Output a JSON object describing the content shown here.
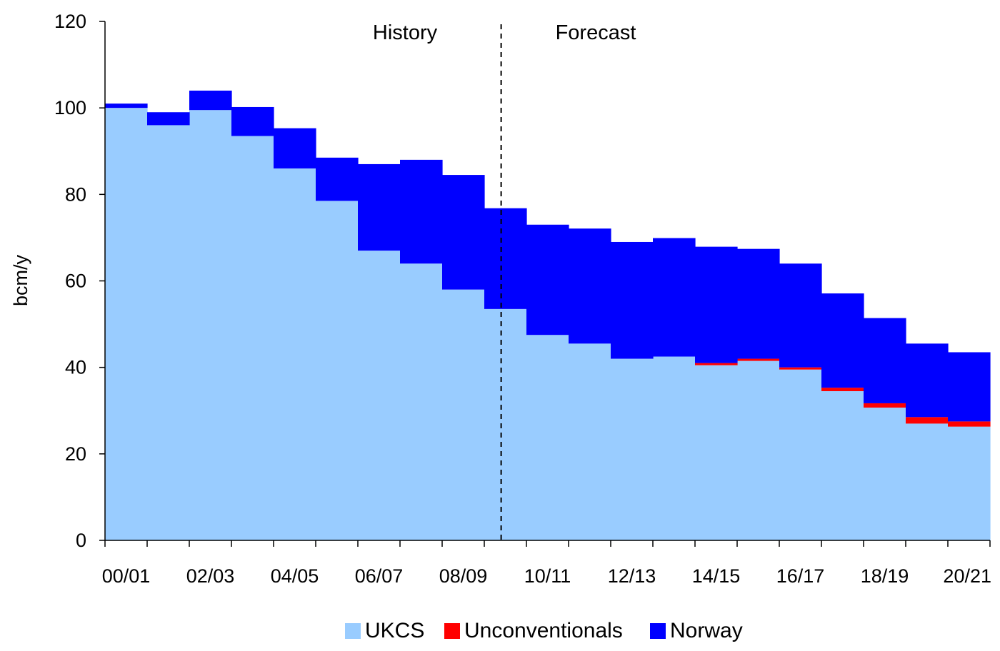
{
  "chart_data": {
    "type": "area",
    "stacked": true,
    "step": true,
    "categories": [
      "00/01",
      "01/02",
      "02/03",
      "03/04",
      "04/05",
      "05/06",
      "06/07",
      "07/08",
      "08/09",
      "09/10",
      "10/11",
      "11/12",
      "12/13",
      "13/14",
      "14/15",
      "15/16",
      "16/17",
      "17/18",
      "18/19",
      "19/20",
      "20/21"
    ],
    "x_tick_labels": [
      "00/01",
      "02/03",
      "04/05",
      "06/07",
      "08/09",
      "10/11",
      "12/13",
      "14/15",
      "16/17",
      "18/19",
      "20/21"
    ],
    "series": [
      {
        "name": "UKCS",
        "color": "#99ccff",
        "values": [
          100,
          96,
          99.5,
          93.5,
          86,
          78.5,
          67,
          64,
          58,
          53.5,
          47.5,
          45.5,
          42,
          42.5,
          40.5,
          41.5,
          39.5,
          34.5,
          30.7,
          27,
          26.3
        ]
      },
      {
        "name": "Unconventionals",
        "color": "#ff0000",
        "values": [
          0,
          0,
          0,
          0,
          0,
          0,
          0,
          0,
          0,
          0,
          0,
          0,
          0,
          0,
          0.5,
          0.5,
          0.5,
          0.8,
          1.0,
          1.5,
          1.2
        ]
      },
      {
        "name": "Norway",
        "color": "#0000ff",
        "values": [
          1,
          3,
          4.5,
          6.7,
          9.3,
          10,
          20,
          24,
          26.5,
          23.3,
          25.5,
          26.6,
          27,
          27.4,
          26.9,
          25.4,
          24.0,
          21.8,
          19.7,
          17,
          16
        ]
      }
    ],
    "ylabel": "bcm/y",
    "ylim": [
      0,
      120
    ],
    "yticks": [
      0,
      20,
      40,
      60,
      80,
      100,
      120
    ],
    "divider_after_category": "09/10",
    "annotations": [
      "History",
      "Forecast"
    ],
    "legend_position": "bottom",
    "grid": false
  },
  "labels": {
    "history": "History",
    "forecast": "Forecast",
    "ylabel": "bcm/y"
  }
}
